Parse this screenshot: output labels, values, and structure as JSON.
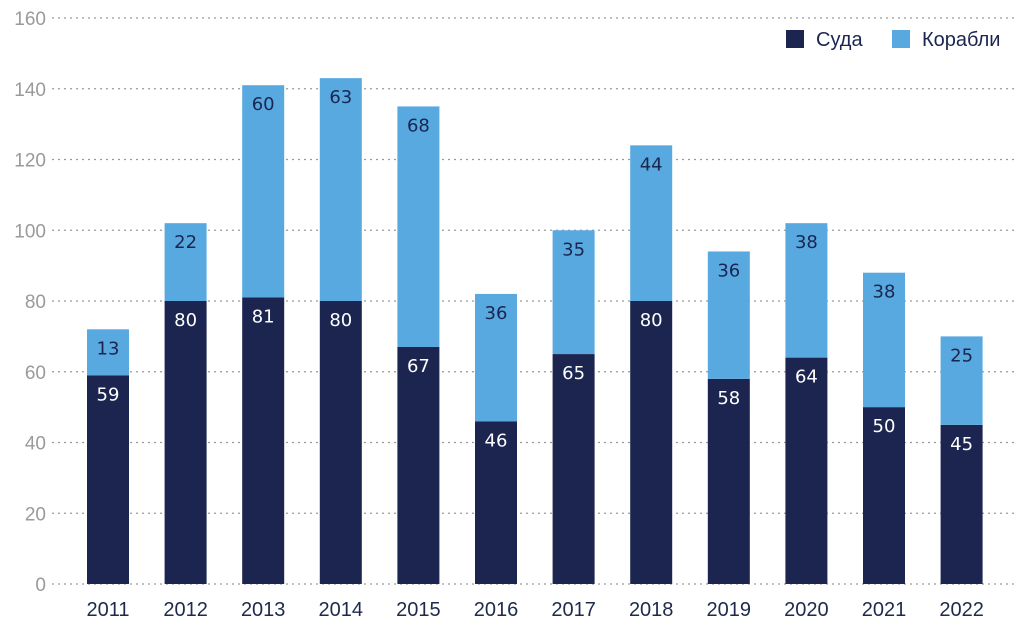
{
  "chart_data": {
    "type": "bar",
    "stacked": true,
    "title": "",
    "xlabel": "",
    "ylabel": "",
    "ylim": [
      0,
      160
    ],
    "yticks": [
      0,
      20,
      40,
      60,
      80,
      100,
      120,
      140,
      160
    ],
    "grid": true,
    "legend_position": "top-right",
    "categories": [
      "2011",
      "2012",
      "2013",
      "2014",
      "2015",
      "2016",
      "2017",
      "2018",
      "2019",
      "2020",
      "2021",
      "2022"
    ],
    "series": [
      {
        "name": "Суда",
        "color": "#1b2550",
        "label_color": "#ffffff",
        "values": [
          59,
          80,
          81,
          80,
          67,
          46,
          65,
          80,
          58,
          64,
          50,
          45
        ]
      },
      {
        "name": "Корабли",
        "color": "#58a9df",
        "label_color": "#1b2550",
        "values": [
          13,
          22,
          60,
          63,
          68,
          36,
          35,
          44,
          36,
          38,
          38,
          25
        ]
      }
    ]
  }
}
